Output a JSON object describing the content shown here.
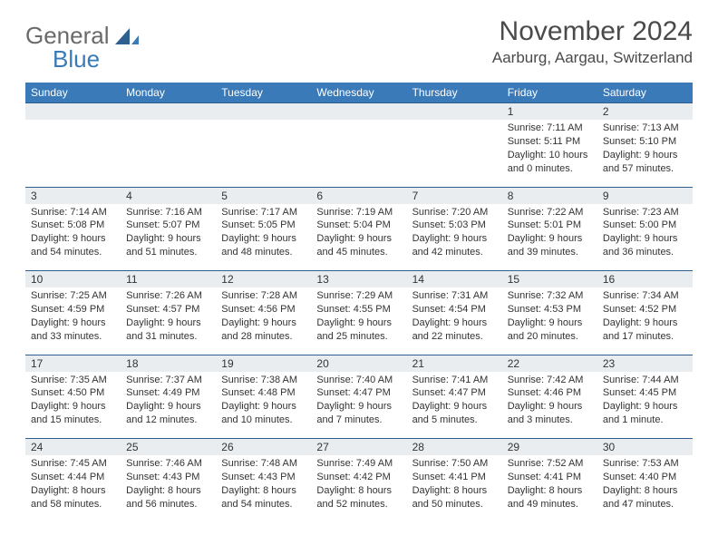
{
  "logo": {
    "part1": "General",
    "part2": "Blue"
  },
  "title": "November 2024",
  "location": "Aarburg, Aargau, Switzerland",
  "colors": {
    "header_bg": "#3a7ab8",
    "header_fg": "#ffffff",
    "daynum_bg": "#e9edf0",
    "rule": "#2f5f8f",
    "text": "#333333",
    "logo_gray": "#6a6a6a",
    "logo_blue": "#3a7ab8"
  },
  "day_headers": [
    "Sunday",
    "Monday",
    "Tuesday",
    "Wednesday",
    "Thursday",
    "Friday",
    "Saturday"
  ],
  "weeks": [
    [
      null,
      null,
      null,
      null,
      null,
      {
        "n": "1",
        "sr": "7:11 AM",
        "ss": "5:11 PM",
        "dl": "10 hours and 0 minutes."
      },
      {
        "n": "2",
        "sr": "7:13 AM",
        "ss": "5:10 PM",
        "dl": "9 hours and 57 minutes."
      }
    ],
    [
      {
        "n": "3",
        "sr": "7:14 AM",
        "ss": "5:08 PM",
        "dl": "9 hours and 54 minutes."
      },
      {
        "n": "4",
        "sr": "7:16 AM",
        "ss": "5:07 PM",
        "dl": "9 hours and 51 minutes."
      },
      {
        "n": "5",
        "sr": "7:17 AM",
        "ss": "5:05 PM",
        "dl": "9 hours and 48 minutes."
      },
      {
        "n": "6",
        "sr": "7:19 AM",
        "ss": "5:04 PM",
        "dl": "9 hours and 45 minutes."
      },
      {
        "n": "7",
        "sr": "7:20 AM",
        "ss": "5:03 PM",
        "dl": "9 hours and 42 minutes."
      },
      {
        "n": "8",
        "sr": "7:22 AM",
        "ss": "5:01 PM",
        "dl": "9 hours and 39 minutes."
      },
      {
        "n": "9",
        "sr": "7:23 AM",
        "ss": "5:00 PM",
        "dl": "9 hours and 36 minutes."
      }
    ],
    [
      {
        "n": "10",
        "sr": "7:25 AM",
        "ss": "4:59 PM",
        "dl": "9 hours and 33 minutes."
      },
      {
        "n": "11",
        "sr": "7:26 AM",
        "ss": "4:57 PM",
        "dl": "9 hours and 31 minutes."
      },
      {
        "n": "12",
        "sr": "7:28 AM",
        "ss": "4:56 PM",
        "dl": "9 hours and 28 minutes."
      },
      {
        "n": "13",
        "sr": "7:29 AM",
        "ss": "4:55 PM",
        "dl": "9 hours and 25 minutes."
      },
      {
        "n": "14",
        "sr": "7:31 AM",
        "ss": "4:54 PM",
        "dl": "9 hours and 22 minutes."
      },
      {
        "n": "15",
        "sr": "7:32 AM",
        "ss": "4:53 PM",
        "dl": "9 hours and 20 minutes."
      },
      {
        "n": "16",
        "sr": "7:34 AM",
        "ss": "4:52 PM",
        "dl": "9 hours and 17 minutes."
      }
    ],
    [
      {
        "n": "17",
        "sr": "7:35 AM",
        "ss": "4:50 PM",
        "dl": "9 hours and 15 minutes."
      },
      {
        "n": "18",
        "sr": "7:37 AM",
        "ss": "4:49 PM",
        "dl": "9 hours and 12 minutes."
      },
      {
        "n": "19",
        "sr": "7:38 AM",
        "ss": "4:48 PM",
        "dl": "9 hours and 10 minutes."
      },
      {
        "n": "20",
        "sr": "7:40 AM",
        "ss": "4:47 PM",
        "dl": "9 hours and 7 minutes."
      },
      {
        "n": "21",
        "sr": "7:41 AM",
        "ss": "4:47 PM",
        "dl": "9 hours and 5 minutes."
      },
      {
        "n": "22",
        "sr": "7:42 AM",
        "ss": "4:46 PM",
        "dl": "9 hours and 3 minutes."
      },
      {
        "n": "23",
        "sr": "7:44 AM",
        "ss": "4:45 PM",
        "dl": "9 hours and 1 minute."
      }
    ],
    [
      {
        "n": "24",
        "sr": "7:45 AM",
        "ss": "4:44 PM",
        "dl": "8 hours and 58 minutes."
      },
      {
        "n": "25",
        "sr": "7:46 AM",
        "ss": "4:43 PM",
        "dl": "8 hours and 56 minutes."
      },
      {
        "n": "26",
        "sr": "7:48 AM",
        "ss": "4:43 PM",
        "dl": "8 hours and 54 minutes."
      },
      {
        "n": "27",
        "sr": "7:49 AM",
        "ss": "4:42 PM",
        "dl": "8 hours and 52 minutes."
      },
      {
        "n": "28",
        "sr": "7:50 AM",
        "ss": "4:41 PM",
        "dl": "8 hours and 50 minutes."
      },
      {
        "n": "29",
        "sr": "7:52 AM",
        "ss": "4:41 PM",
        "dl": "8 hours and 49 minutes."
      },
      {
        "n": "30",
        "sr": "7:53 AM",
        "ss": "4:40 PM",
        "dl": "8 hours and 47 minutes."
      }
    ]
  ],
  "labels": {
    "sunrise": "Sunrise:",
    "sunset": "Sunset:",
    "daylight": "Daylight:"
  }
}
